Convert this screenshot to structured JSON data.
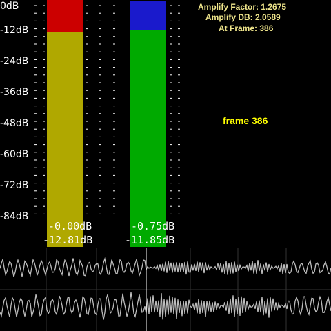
{
  "meter": {
    "scale_labels": [
      "0dB",
      "-12dB",
      "-24dB",
      "-36dB",
      "-48dB",
      "-60dB",
      "-72dB",
      "-84dB"
    ],
    "left_channel": {
      "peak_level": "-0.00dB",
      "rms_level": "-12.81dB",
      "peak_color": "#cc0000",
      "body_color": "#b0a800"
    },
    "right_channel": {
      "peak_level": "-0.75dB",
      "rms_level": "-11.85dB",
      "peak_color": "#1a1acc",
      "body_color": "#00aa00"
    }
  },
  "info": {
    "amplify_factor": "Amplify Factor:   1.2675",
    "amplify_db": "Amplify DB:   2.0589",
    "at_frame": "At Frame: 386",
    "frame_label": "frame 386"
  },
  "waveforms": {
    "top_name": "waveform-channel-1",
    "bottom_name": "waveform-channel-2"
  }
}
